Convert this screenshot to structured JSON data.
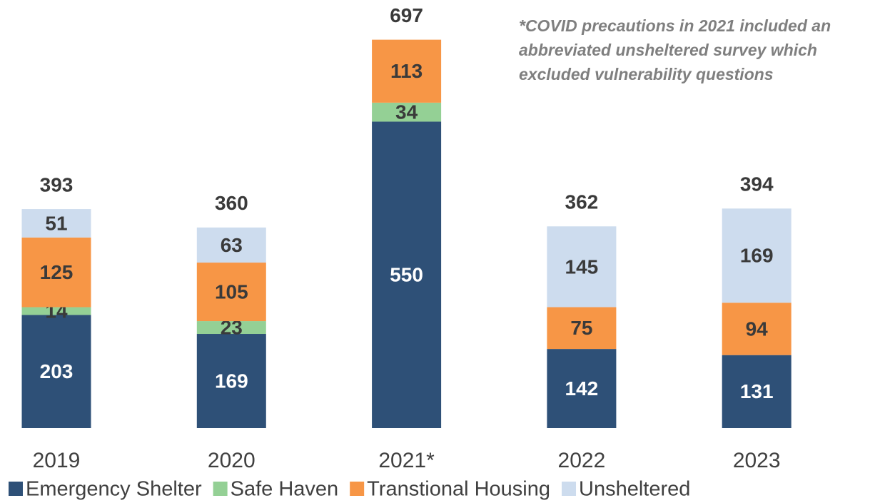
{
  "chart_data": {
    "type": "stacked_bar",
    "categories": [
      "2019",
      "2020",
      "2021*",
      "2022",
      "2023"
    ],
    "series": [
      {
        "name": "Emergency Shelter",
        "color": "#2e5077",
        "values": [
          203,
          169,
          550,
          142,
          131
        ]
      },
      {
        "name": "Safe Haven",
        "color": "#94d095",
        "values": [
          14,
          23,
          34,
          null,
          null
        ]
      },
      {
        "name": "Transtional Housing",
        "color": "#f79646",
        "values": [
          125,
          105,
          113,
          75,
          94
        ]
      },
      {
        "name": "Unsheltered",
        "color": "#cddcee",
        "values": [
          51,
          63,
          null,
          145,
          169
        ]
      }
    ],
    "totals": [
      393,
      360,
      697,
      362,
      394
    ],
    "annotation": [
      "*COVID precautions in 2021 included an",
      "abbreviated unsheltered survey which",
      "excluded vulnerability questions"
    ],
    "legend": "bottom"
  }
}
